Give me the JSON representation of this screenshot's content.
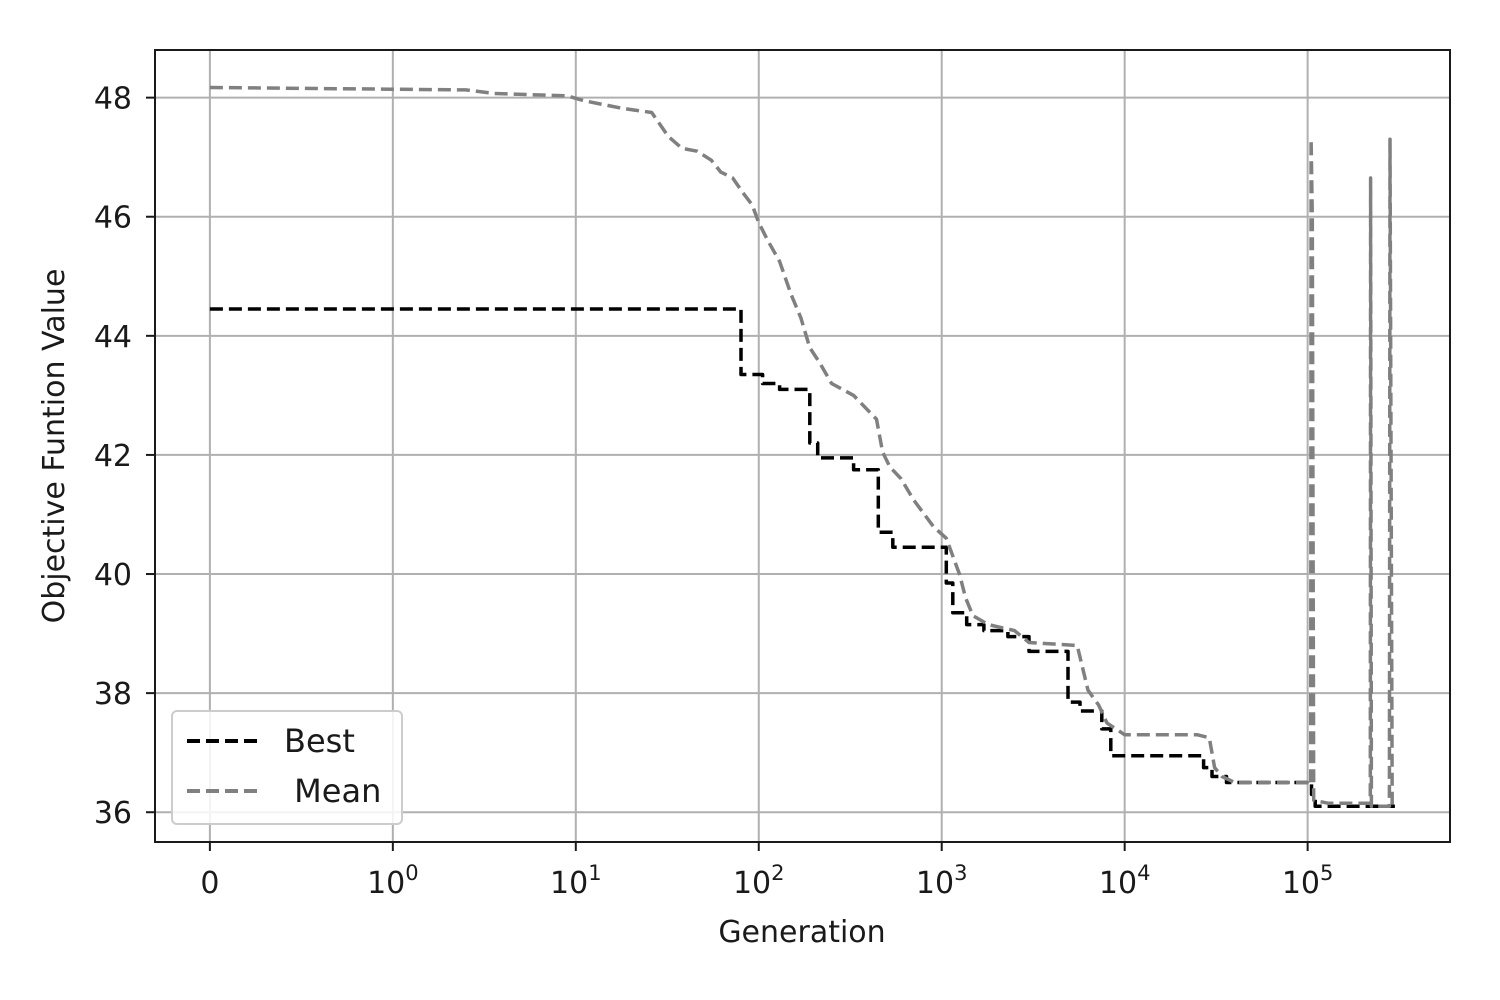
{
  "chart_data": {
    "type": "line",
    "xlabel": "Generation",
    "ylabel": "Objective Funtion Value",
    "xscale": "symlog",
    "xlim": [
      -0.3,
      600000
    ],
    "ylim": [
      35.5,
      48.8
    ],
    "grid": true,
    "legend_position": "lower-left",
    "x_ticks": [
      {
        "value": 0,
        "base": "0",
        "exp": ""
      },
      {
        "value": 1,
        "base": "10",
        "exp": "0"
      },
      {
        "value": 10,
        "base": "10",
        "exp": "1"
      },
      {
        "value": 100,
        "base": "10",
        "exp": "2"
      },
      {
        "value": 1000,
        "base": "10",
        "exp": "3"
      },
      {
        "value": 10000,
        "base": "10",
        "exp": "4"
      },
      {
        "value": 100000,
        "base": "10",
        "exp": "5"
      }
    ],
    "y_ticks": [
      {
        "value": 36,
        "label": "36"
      },
      {
        "value": 38,
        "label": "38"
      },
      {
        "value": 40,
        "label": "40"
      },
      {
        "value": 42,
        "label": "42"
      },
      {
        "value": 44,
        "label": "44"
      },
      {
        "value": 46,
        "label": "46"
      },
      {
        "value": 48,
        "label": "48"
      }
    ],
    "series": [
      {
        "name": "Best",
        "legend_label": "Best",
        "color": "#000000",
        "step": true,
        "points": [
          [
            0,
            44.45
          ],
          [
            80,
            44.45
          ],
          [
            80,
            43.35
          ],
          [
            105,
            43.35
          ],
          [
            105,
            43.2
          ],
          [
            130,
            43.2
          ],
          [
            130,
            43.1
          ],
          [
            190,
            43.1
          ],
          [
            190,
            42.2
          ],
          [
            210,
            42.2
          ],
          [
            210,
            41.95
          ],
          [
            330,
            41.95
          ],
          [
            330,
            41.75
          ],
          [
            450,
            41.75
          ],
          [
            450,
            40.7
          ],
          [
            540,
            40.7
          ],
          [
            540,
            40.45
          ],
          [
            1060,
            40.45
          ],
          [
            1060,
            39.85
          ],
          [
            1150,
            39.85
          ],
          [
            1150,
            39.35
          ],
          [
            1370,
            39.35
          ],
          [
            1370,
            39.15
          ],
          [
            1700,
            39.15
          ],
          [
            1700,
            39.05
          ],
          [
            2300,
            39.05
          ],
          [
            2300,
            38.95
          ],
          [
            3000,
            38.95
          ],
          [
            3000,
            38.7
          ],
          [
            4900,
            38.7
          ],
          [
            4900,
            37.85
          ],
          [
            5700,
            37.85
          ],
          [
            5700,
            37.7
          ],
          [
            7500,
            37.7
          ],
          [
            7500,
            37.4
          ],
          [
            8400,
            37.4
          ],
          [
            8400,
            36.95
          ],
          [
            27000,
            36.95
          ],
          [
            27000,
            36.75
          ],
          [
            30000,
            36.75
          ],
          [
            30000,
            36.6
          ],
          [
            36000,
            36.6
          ],
          [
            36000,
            36.5
          ],
          [
            105000,
            36.5
          ],
          [
            105000,
            36.3
          ],
          [
            110000,
            36.3
          ],
          [
            110000,
            36.1
          ],
          [
            300000,
            36.1
          ]
        ]
      },
      {
        "name": "Mean",
        "legend_label": " Mean",
        "color": "#808080",
        "step": false,
        "points": [
          [
            0,
            48.17
          ],
          [
            2.5,
            48.13
          ],
          [
            3.6,
            48.07
          ],
          [
            9,
            48.03
          ],
          [
            11,
            47.95
          ],
          [
            18,
            47.82
          ],
          [
            26,
            47.75
          ],
          [
            32,
            47.35
          ],
          [
            38,
            47.15
          ],
          [
            46,
            47.1
          ],
          [
            55,
            46.95
          ],
          [
            62,
            46.75
          ],
          [
            72,
            46.65
          ],
          [
            82,
            46.4
          ],
          [
            92,
            46.2
          ],
          [
            100,
            45.9
          ],
          [
            112,
            45.6
          ],
          [
            130,
            45.25
          ],
          [
            150,
            44.7
          ],
          [
            170,
            44.3
          ],
          [
            190,
            43.8
          ],
          [
            215,
            43.55
          ],
          [
            250,
            43.2
          ],
          [
            330,
            43.0
          ],
          [
            440,
            42.6
          ],
          [
            475,
            42.05
          ],
          [
            520,
            41.8
          ],
          [
            600,
            41.6
          ],
          [
            700,
            41.25
          ],
          [
            900,
            40.8
          ],
          [
            1060,
            40.6
          ],
          [
            1250,
            40.0
          ],
          [
            1350,
            39.6
          ],
          [
            1480,
            39.3
          ],
          [
            1800,
            39.15
          ],
          [
            2500,
            39.05
          ],
          [
            3000,
            38.85
          ],
          [
            5500,
            38.8
          ],
          [
            6300,
            38.05
          ],
          [
            7200,
            37.8
          ],
          [
            8000,
            37.5
          ],
          [
            10000,
            37.3
          ],
          [
            25000,
            37.3
          ],
          [
            29000,
            37.25
          ],
          [
            31000,
            36.75
          ],
          [
            34000,
            36.6
          ],
          [
            40000,
            36.5
          ],
          [
            100000,
            36.5
          ],
          [
            104000,
            36.45
          ],
          [
            104500,
            47.3
          ],
          [
            106000,
            46.0
          ],
          [
            108000,
            36.2
          ],
          [
            130000,
            36.15
          ],
          [
            220000,
            36.15
          ],
          [
            221000,
            46.65
          ],
          [
            223000,
            36.1
          ],
          [
            280000,
            36.1
          ],
          [
            282000,
            47.3
          ],
          [
            290000,
            36.1
          ]
        ]
      }
    ]
  }
}
